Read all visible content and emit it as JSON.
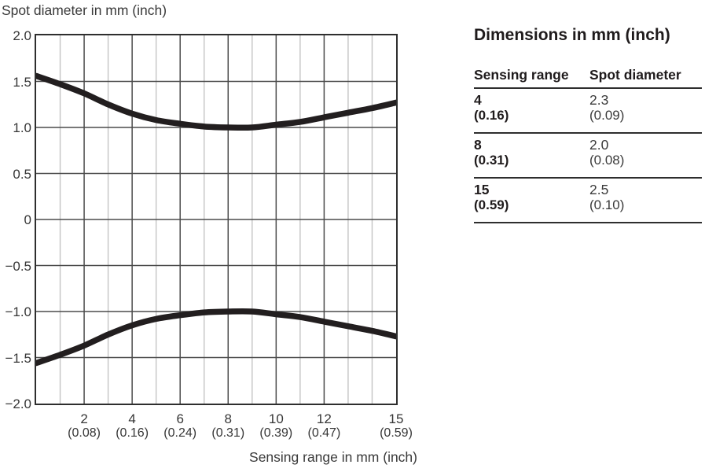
{
  "chart": {
    "title": "Spot diameter in mm (inch)",
    "xlabel": "Sensing range in mm (inch)"
  },
  "chart_data": {
    "type": "line",
    "title": "Spot diameter in mm (inch)",
    "xlabel": "Sensing range in mm (inch)",
    "ylabel": "",
    "xlim": [
      0,
      15
    ],
    "ylim": [
      -2.0,
      2.0
    ],
    "grid": {
      "y_values": [
        1.5,
        1.0,
        0.5,
        0,
        -0.5,
        -1.0,
        -1.5
      ],
      "x_dark": [
        2,
        4,
        6,
        8,
        10,
        12
      ],
      "x_light": [
        1,
        3,
        5,
        7,
        9,
        11,
        13,
        14
      ]
    },
    "yticks": [
      "2.0",
      "1.5",
      "1.0",
      "0.5",
      "0",
      "−0.5",
      "−1.0",
      "−1.5",
      "−2.0"
    ],
    "ytick_values": [
      2.0,
      1.5,
      1.0,
      0.5,
      0,
      -0.5,
      -1.0,
      -1.5,
      -2.0
    ],
    "xticks": [
      {
        "x": 2,
        "mm": "2",
        "inch": "(0.08)"
      },
      {
        "x": 4,
        "mm": "4",
        "inch": "(0.16)"
      },
      {
        "x": 6,
        "mm": "6",
        "inch": "(0.24)"
      },
      {
        "x": 8,
        "mm": "8",
        "inch": "(0.31)"
      },
      {
        "x": 10,
        "mm": "10",
        "inch": "(0.39)"
      },
      {
        "x": 12,
        "mm": "12",
        "inch": "(0.47)"
      },
      {
        "x": 15,
        "mm": "15",
        "inch": "(0.59)"
      }
    ],
    "series": [
      {
        "name": "spot-radius-upper",
        "x": [
          0,
          1,
          2,
          3,
          4,
          5,
          6,
          7,
          8,
          9,
          10,
          11,
          12,
          13,
          14,
          15
        ],
        "y": [
          1.56,
          1.47,
          1.37,
          1.25,
          1.15,
          1.08,
          1.04,
          1.01,
          1.0,
          1.0,
          1.03,
          1.06,
          1.11,
          1.16,
          1.21,
          1.27
        ]
      },
      {
        "name": "spot-radius-lower",
        "x": [
          0,
          1,
          2,
          3,
          4,
          5,
          6,
          7,
          8,
          9,
          10,
          11,
          12,
          13,
          14,
          15
        ],
        "y": [
          -1.56,
          -1.47,
          -1.37,
          -1.25,
          -1.15,
          -1.08,
          -1.04,
          -1.01,
          -1.0,
          -1.0,
          -1.03,
          -1.06,
          -1.11,
          -1.16,
          -1.21,
          -1.27
        ]
      }
    ],
    "legend": "none"
  },
  "table": {
    "title": "Dimensions in mm (inch)",
    "columns": [
      "Sensing range",
      "Spot diameter"
    ],
    "rows": [
      {
        "sensing_mm": "4",
        "sensing_inch": "(0.16)",
        "spot_mm": "2.3",
        "spot_inch": "(0.09)"
      },
      {
        "sensing_mm": "8",
        "sensing_inch": "(0.31)",
        "spot_mm": "2.0",
        "spot_inch": "(0.08)"
      },
      {
        "sensing_mm": "15",
        "sensing_inch": "(0.59)",
        "spot_mm": "2.5",
        "spot_inch": "(0.10)"
      }
    ]
  },
  "colors": {
    "curve": "#221e1f",
    "grid_dark": "#4b4b4b",
    "grid_light": "#c4c4c4",
    "plot_border": "#2e2e2e",
    "text": "#363636",
    "text_strong": "#1f1b1c",
    "table_rule": "#2e2e2e",
    "background": "#ffffff"
  }
}
